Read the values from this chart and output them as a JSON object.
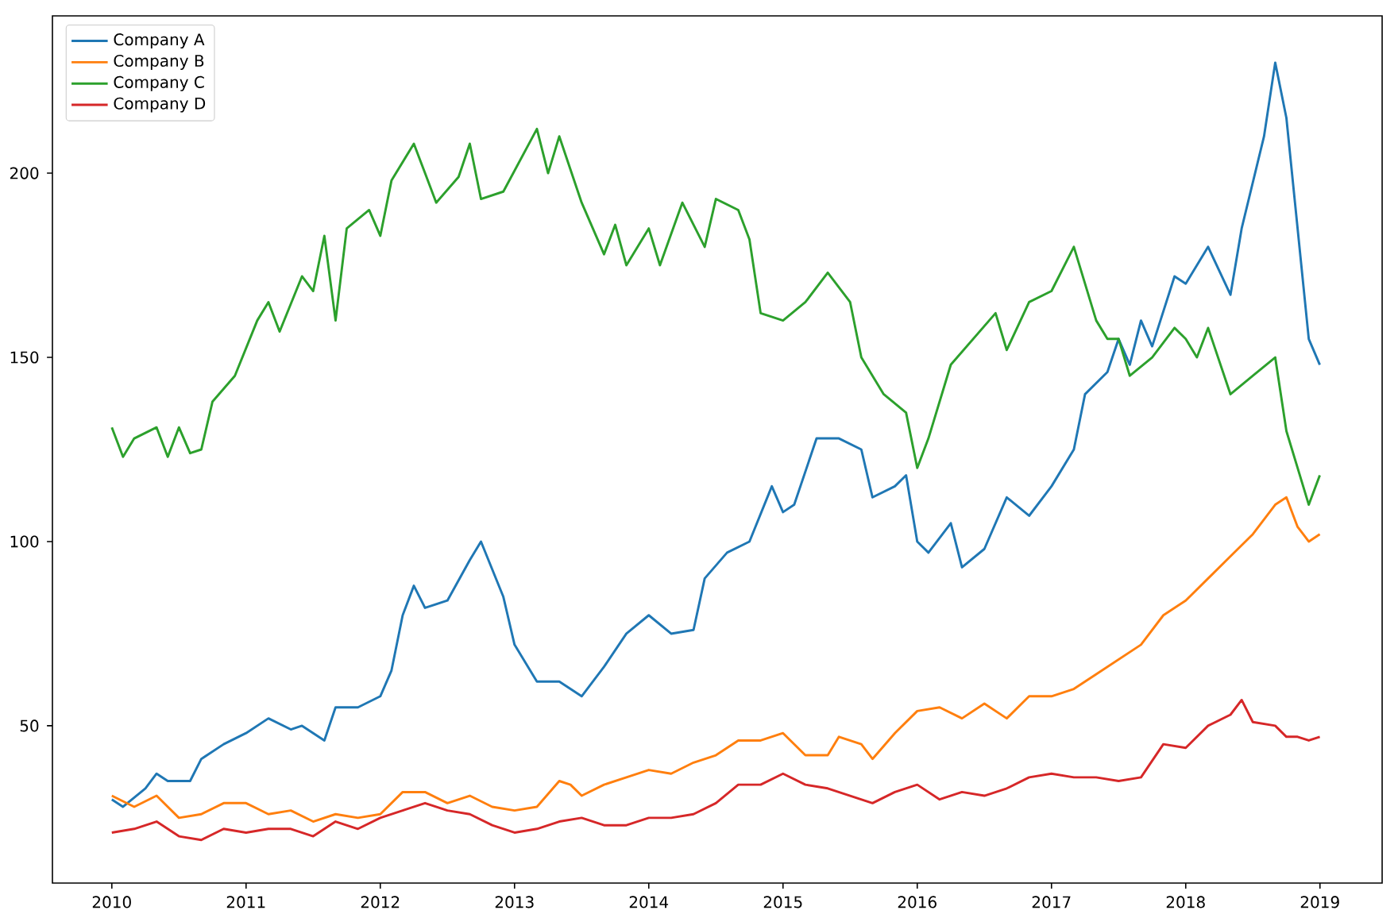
{
  "chart_data": {
    "type": "line",
    "xlim": [
      "2009-07-22",
      "2019-06-18"
    ],
    "ylim": [
      7.3,
      242.7
    ],
    "xticks": [
      "2010",
      "2011",
      "2012",
      "2013",
      "2014",
      "2015",
      "2016",
      "2017",
      "2018",
      "2019"
    ],
    "yticks": [
      50,
      100,
      150,
      200
    ],
    "legend": "top left",
    "grid": false,
    "line_style": "solid",
    "marker": "none",
    "series": [
      {
        "name": "Company A",
        "color": "#1f77b4",
        "x": [
          "2010-01",
          "2010-02",
          "2010-04",
          "2010-05",
          "2010-06",
          "2010-08",
          "2010-09",
          "2010-11",
          "2011-01",
          "2011-03",
          "2011-05",
          "2011-06",
          "2011-08",
          "2011-09",
          "2011-11",
          "2012-01",
          "2012-02",
          "2012-03",
          "2012-04",
          "2012-05",
          "2012-07",
          "2012-09",
          "2012-10",
          "2012-12",
          "2013-01",
          "2013-03",
          "2013-05",
          "2013-07",
          "2013-09",
          "2013-11",
          "2014-01",
          "2014-03",
          "2014-05",
          "2014-06",
          "2014-08",
          "2014-10",
          "2014-12",
          "2015-01",
          "2015-02",
          "2015-04",
          "2015-06",
          "2015-08",
          "2015-09",
          "2015-11",
          "2015-12",
          "2016-01",
          "2016-02",
          "2016-04",
          "2016-05",
          "2016-07",
          "2016-09",
          "2016-11",
          "2017-01",
          "2017-03",
          "2017-04",
          "2017-06",
          "2017-07",
          "2017-08",
          "2017-09",
          "2017-10",
          "2017-12",
          "2018-01",
          "2018-03",
          "2018-05",
          "2018-06",
          "2018-08",
          "2018-09",
          "2018-10",
          "2018-11",
          "2018-12",
          "2018-12-31"
        ],
        "values": [
          30,
          28,
          33,
          37,
          35,
          35,
          41,
          45,
          48,
          52,
          49,
          50,
          46,
          55,
          55,
          58,
          65,
          80,
          88,
          82,
          84,
          95,
          100,
          85,
          72,
          62,
          62,
          58,
          66,
          75,
          80,
          75,
          76,
          90,
          97,
          100,
          115,
          108,
          110,
          128,
          128,
          125,
          112,
          115,
          118,
          100,
          97,
          105,
          93,
          98,
          112,
          107,
          115,
          125,
          140,
          146,
          155,
          148,
          160,
          153,
          172,
          170,
          180,
          167,
          185,
          210,
          230,
          215,
          185,
          155,
          148
        ]
      },
      {
        "name": "Company B",
        "color": "#ff7f0e",
        "x": [
          "2010-01",
          "2010-03",
          "2010-05",
          "2010-07",
          "2010-09",
          "2010-11",
          "2011-01",
          "2011-03",
          "2011-05",
          "2011-07",
          "2011-09",
          "2011-11",
          "2012-01",
          "2012-03",
          "2012-05",
          "2012-07",
          "2012-09",
          "2012-11",
          "2013-01",
          "2013-03",
          "2013-05",
          "2013-06",
          "2013-07",
          "2013-09",
          "2013-11",
          "2014-01",
          "2014-03",
          "2014-05",
          "2014-07",
          "2014-09",
          "2014-11",
          "2015-01",
          "2015-03",
          "2015-05",
          "2015-06",
          "2015-08",
          "2015-09",
          "2015-11",
          "2016-01",
          "2016-03",
          "2016-05",
          "2016-07",
          "2016-09",
          "2016-11",
          "2017-01",
          "2017-03",
          "2017-05",
          "2017-07",
          "2017-09",
          "2017-11",
          "2018-01",
          "2018-03",
          "2018-05",
          "2018-07",
          "2018-09",
          "2018-10",
          "2018-11",
          "2018-12",
          "2018-12-31"
        ],
        "values": [
          31,
          28,
          31,
          25,
          26,
          29,
          29,
          26,
          27,
          24,
          26,
          25,
          26,
          32,
          32,
          29,
          31,
          28,
          27,
          28,
          35,
          34,
          31,
          34,
          36,
          38,
          37,
          40,
          42,
          46,
          46,
          48,
          42,
          42,
          47,
          45,
          41,
          48,
          54,
          55,
          52,
          56,
          52,
          58,
          58,
          60,
          64,
          68,
          72,
          80,
          84,
          90,
          96,
          102,
          110,
          112,
          104,
          100,
          102
        ]
      },
      {
        "name": "Company C",
        "color": "#2ca02c",
        "x": [
          "2010-01",
          "2010-02",
          "2010-03",
          "2010-05",
          "2010-06",
          "2010-07",
          "2010-08",
          "2010-09",
          "2010-10",
          "2010-12",
          "2011-02",
          "2011-03",
          "2011-04",
          "2011-06",
          "2011-07",
          "2011-08",
          "2011-09",
          "2011-10",
          "2011-12",
          "2012-01",
          "2012-02",
          "2012-04",
          "2012-05",
          "2012-06",
          "2012-08",
          "2012-09",
          "2012-10",
          "2012-12",
          "2013-03",
          "2013-04",
          "2013-05",
          "2013-07",
          "2013-09",
          "2013-10",
          "2013-11",
          "2014-01",
          "2014-02",
          "2014-04",
          "2014-06",
          "2014-07",
          "2014-09",
          "2014-10",
          "2014-11",
          "2015-01",
          "2015-03",
          "2015-05",
          "2015-07",
          "2015-08",
          "2015-10",
          "2015-12",
          "2016-01",
          "2016-02",
          "2016-04",
          "2016-06",
          "2016-08",
          "2016-09",
          "2016-11",
          "2017-01",
          "2017-03",
          "2017-05",
          "2017-06",
          "2017-07",
          "2017-08",
          "2017-10",
          "2017-12",
          "2018-01",
          "2018-02",
          "2018-03",
          "2018-05",
          "2018-07",
          "2018-09",
          "2018-10",
          "2018-11",
          "2018-12",
          "2018-12-31"
        ],
        "values": [
          131,
          123,
          128,
          131,
          123,
          131,
          124,
          125,
          138,
          145,
          160,
          165,
          157,
          172,
          168,
          183,
          160,
          185,
          190,
          183,
          198,
          208,
          200,
          192,
          199,
          208,
          193,
          195,
          212,
          200,
          210,
          192,
          178,
          186,
          175,
          185,
          175,
          192,
          180,
          193,
          190,
          182,
          162,
          160,
          165,
          173,
          165,
          150,
          140,
          135,
          120,
          128,
          148,
          155,
          162,
          152,
          165,
          168,
          180,
          160,
          155,
          155,
          145,
          150,
          158,
          155,
          150,
          158,
          140,
          145,
          150,
          130,
          120,
          110,
          118
        ]
      },
      {
        "name": "Company D",
        "color": "#d62728",
        "x": [
          "2010-01",
          "2010-03",
          "2010-05",
          "2010-07",
          "2010-09",
          "2010-11",
          "2011-01",
          "2011-03",
          "2011-05",
          "2011-07",
          "2011-09",
          "2011-11",
          "2012-01",
          "2012-03",
          "2012-05",
          "2012-07",
          "2012-09",
          "2012-11",
          "2013-01",
          "2013-03",
          "2013-05",
          "2013-07",
          "2013-09",
          "2013-11",
          "2014-01",
          "2014-03",
          "2014-05",
          "2014-07",
          "2014-09",
          "2014-11",
          "2015-01",
          "2015-03",
          "2015-05",
          "2015-07",
          "2015-09",
          "2015-11",
          "2016-01",
          "2016-03",
          "2016-05",
          "2016-07",
          "2016-09",
          "2016-11",
          "2017-01",
          "2017-03",
          "2017-05",
          "2017-07",
          "2017-09",
          "2017-11",
          "2018-01",
          "2018-03",
          "2018-05",
          "2018-06",
          "2018-07",
          "2018-09",
          "2018-10",
          "2018-11",
          "2018-12",
          "2018-12-31"
        ],
        "values": [
          21,
          22,
          24,
          20,
          19,
          22,
          21,
          22,
          22,
          20,
          24,
          22,
          25,
          27,
          29,
          27,
          26,
          23,
          21,
          22,
          24,
          25,
          23,
          23,
          25,
          25,
          26,
          29,
          34,
          34,
          37,
          34,
          33,
          31,
          29,
          32,
          34,
          30,
          32,
          31,
          33,
          36,
          37,
          36,
          36,
          35,
          36,
          45,
          44,
          50,
          53,
          57,
          51,
          50,
          47,
          47,
          46,
          47
        ]
      }
    ]
  }
}
